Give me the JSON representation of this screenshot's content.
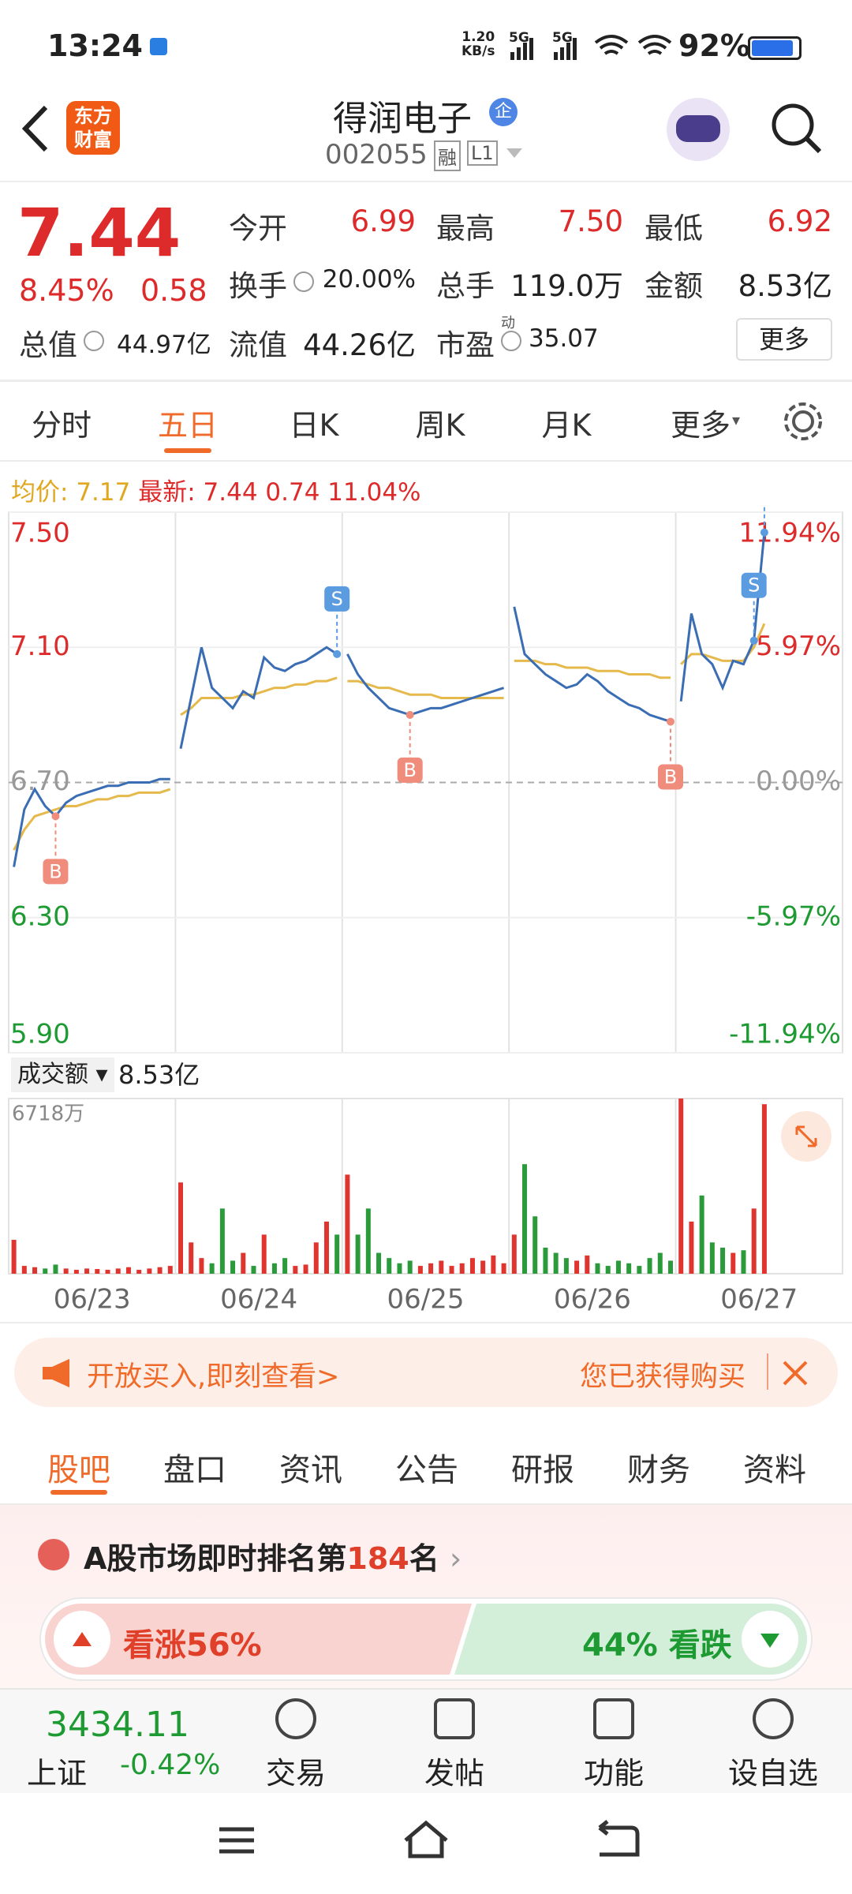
{
  "status_bar": {
    "time": "13:24",
    "speed": "1.20",
    "speed_unit": "KB/s",
    "net1": "5G",
    "net2": "5G",
    "battery": "92%"
  },
  "header": {
    "logo": [
      "东方",
      "财富"
    ],
    "title": "得润电子",
    "badge": "企",
    "code": "002055",
    "tags": [
      "融",
      "L1"
    ]
  },
  "quote": {
    "price": "7.44",
    "change_pct": "8.45%",
    "change": "0.58",
    "fields": [
      {
        "label": "今开",
        "value": "6.99"
      },
      {
        "label": "最高",
        "value": "7.50"
      },
      {
        "label": "最低",
        "value": "6.92"
      },
      {
        "label": "换手",
        "value": "20.00%"
      },
      {
        "label": "总手",
        "value": "119.0万"
      },
      {
        "label": "金额",
        "value": "8.53亿"
      },
      {
        "label": "总值",
        "value": "44.97亿"
      },
      {
        "label": "流值",
        "value": "44.26亿"
      },
      {
        "label": "市盈",
        "sup": "动",
        "value": "35.07"
      }
    ],
    "more": "更多"
  },
  "tabs": [
    "分时",
    "五日",
    "日K",
    "周K",
    "月K",
    "更多"
  ],
  "chart_data": {
    "type": "line",
    "avg_label": "均价:",
    "avg_value": "7.17",
    "last_label": "最新:",
    "last_value": "7.44",
    "last_change": "0.74",
    "last_pct": "11.04%",
    "ylim": [
      5.9,
      7.5
    ],
    "yticks": [
      {
        "value": 7.5,
        "label": "7.50"
      },
      {
        "value": 7.1,
        "label": "7.10"
      },
      {
        "value": 6.7,
        "label": "6.70"
      },
      {
        "value": 6.3,
        "label": "6.30"
      },
      {
        "value": 5.9,
        "label": "5.90"
      }
    ],
    "y2lim": [
      -11.94,
      11.94
    ],
    "y2ticks": [
      {
        "value": 11.94,
        "label": "11.94%"
      },
      {
        "value": 5.97,
        "label": "5.97%"
      },
      {
        "value": 0,
        "label": "0.00%"
      },
      {
        "value": -5.97,
        "label": "-5.97%"
      },
      {
        "value": -11.94,
        "label": "-11.94%"
      }
    ],
    "categories": [
      "06/23",
      "06/24",
      "06/25",
      "06/26",
      "06/27"
    ],
    "price_color": "#3a6db3",
    "avg_color": "#e5b94c",
    "volume_title": "成交额",
    "volume_total": "8.53亿",
    "volume_ylim": [
      0,
      6718
    ],
    "volume_ticks": [
      {
        "value": 6718,
        "label": "6718万"
      }
    ],
    "days": [
      {
        "price": [
          6.45,
          6.62,
          6.68,
          6.63,
          6.6,
          6.64,
          6.66,
          6.67,
          6.68,
          6.69,
          6.69,
          6.7,
          6.7,
          6.7,
          6.71,
          6.71
        ],
        "avg": [
          6.5,
          6.56,
          6.6,
          6.61,
          6.62,
          6.63,
          6.63,
          6.64,
          6.65,
          6.65,
          6.66,
          6.66,
          6.67,
          6.67,
          6.67,
          6.68
        ],
        "trades": [
          null,
          null,
          null,
          null,
          "B",
          null,
          null,
          null,
          null,
          null,
          null,
          null,
          null,
          null,
          null,
          null
        ],
        "volume": [
          1300,
          300,
          250,
          200,
          350,
          200,
          150,
          200,
          180,
          150,
          200,
          250,
          150,
          200,
          250,
          300
        ]
      },
      {
        "price": [
          6.8,
          6.95,
          7.1,
          6.98,
          6.95,
          6.92,
          6.97,
          6.95,
          7.07,
          7.04,
          7.03,
          7.05,
          7.06,
          7.08,
          7.1,
          7.08
        ],
        "avg": [
          6.9,
          6.92,
          6.95,
          6.95,
          6.95,
          6.95,
          6.96,
          6.96,
          6.97,
          6.98,
          6.98,
          6.99,
          6.99,
          7.0,
          7.0,
          7.01
        ],
        "trades": [
          null,
          null,
          null,
          null,
          null,
          null,
          null,
          null,
          null,
          null,
          null,
          null,
          null,
          null,
          null,
          "S"
        ],
        "volume": [
          3500,
          1200,
          600,
          400,
          2500,
          500,
          800,
          300,
          1500,
          400,
          600,
          300,
          350,
          1200,
          2000,
          1500
        ]
      },
      {
        "price": [
          7.08,
          7.02,
          6.98,
          6.95,
          6.92,
          6.91,
          6.9,
          6.91,
          6.92,
          6.92,
          6.93,
          6.94,
          6.95,
          6.96,
          6.97,
          6.98
        ],
        "avg": [
          7.0,
          7.0,
          6.99,
          6.98,
          6.98,
          6.97,
          6.96,
          6.96,
          6.96,
          6.95,
          6.95,
          6.95,
          6.95,
          6.95,
          6.95,
          6.95
        ],
        "trades": [
          null,
          null,
          null,
          null,
          null,
          null,
          "B",
          null,
          null,
          null,
          null,
          null,
          null,
          null,
          null,
          null
        ],
        "volume": [
          3800,
          1500,
          2500,
          800,
          600,
          400,
          500,
          300,
          400,
          500,
          300,
          400,
          600,
          500,
          700,
          400
        ]
      },
      {
        "price": [
          7.22,
          7.08,
          7.05,
          7.02,
          7.0,
          6.98,
          6.99,
          7.02,
          7.0,
          6.97,
          6.95,
          6.93,
          6.92,
          6.9,
          6.89,
          6.88
        ],
        "avg": [
          7.06,
          7.06,
          7.06,
          7.05,
          7.05,
          7.04,
          7.04,
          7.04,
          7.03,
          7.03,
          7.03,
          7.02,
          7.02,
          7.02,
          7.01,
          7.01
        ],
        "trades": [
          null,
          null,
          null,
          null,
          null,
          null,
          null,
          null,
          null,
          null,
          null,
          null,
          null,
          null,
          null,
          "B"
        ],
        "volume": [
          1500,
          4200,
          2200,
          1000,
          800,
          600,
          500,
          700,
          400,
          300,
          500,
          400,
          300,
          600,
          800,
          500
        ]
      },
      {
        "price": [
          6.94,
          7.2,
          7.08,
          7.05,
          6.98,
          7.06,
          7.05,
          7.12,
          7.44
        ],
        "avg": [
          7.05,
          7.08,
          7.08,
          7.07,
          7.06,
          7.06,
          7.06,
          7.1,
          7.17
        ],
        "trades": [
          null,
          null,
          null,
          null,
          null,
          null,
          null,
          "S",
          "S"
        ],
        "volume": [
          6718,
          2000,
          3000,
          1200,
          1000,
          800,
          900,
          2500,
          6500
        ]
      }
    ]
  },
  "banner": {
    "text": "开放买入,即刻查看>",
    "right": "您已获得购买"
  },
  "tabs2": [
    "股吧",
    "盘口",
    "资讯",
    "公告",
    "研报",
    "财务",
    "资料"
  ],
  "ranking": {
    "prefix": "A股市场即时排名第",
    "rank": "184",
    "suffix": "名"
  },
  "sentiment": {
    "bull_label": "看涨",
    "bull": "56%",
    "bear": "44%",
    "bear_label": "看跌"
  },
  "bottom_nav": {
    "index_value": "3434.11",
    "index_name": "上证",
    "index_change": "-0.42%",
    "items": [
      "交易",
      "发帖",
      "功能",
      "设自选"
    ]
  }
}
